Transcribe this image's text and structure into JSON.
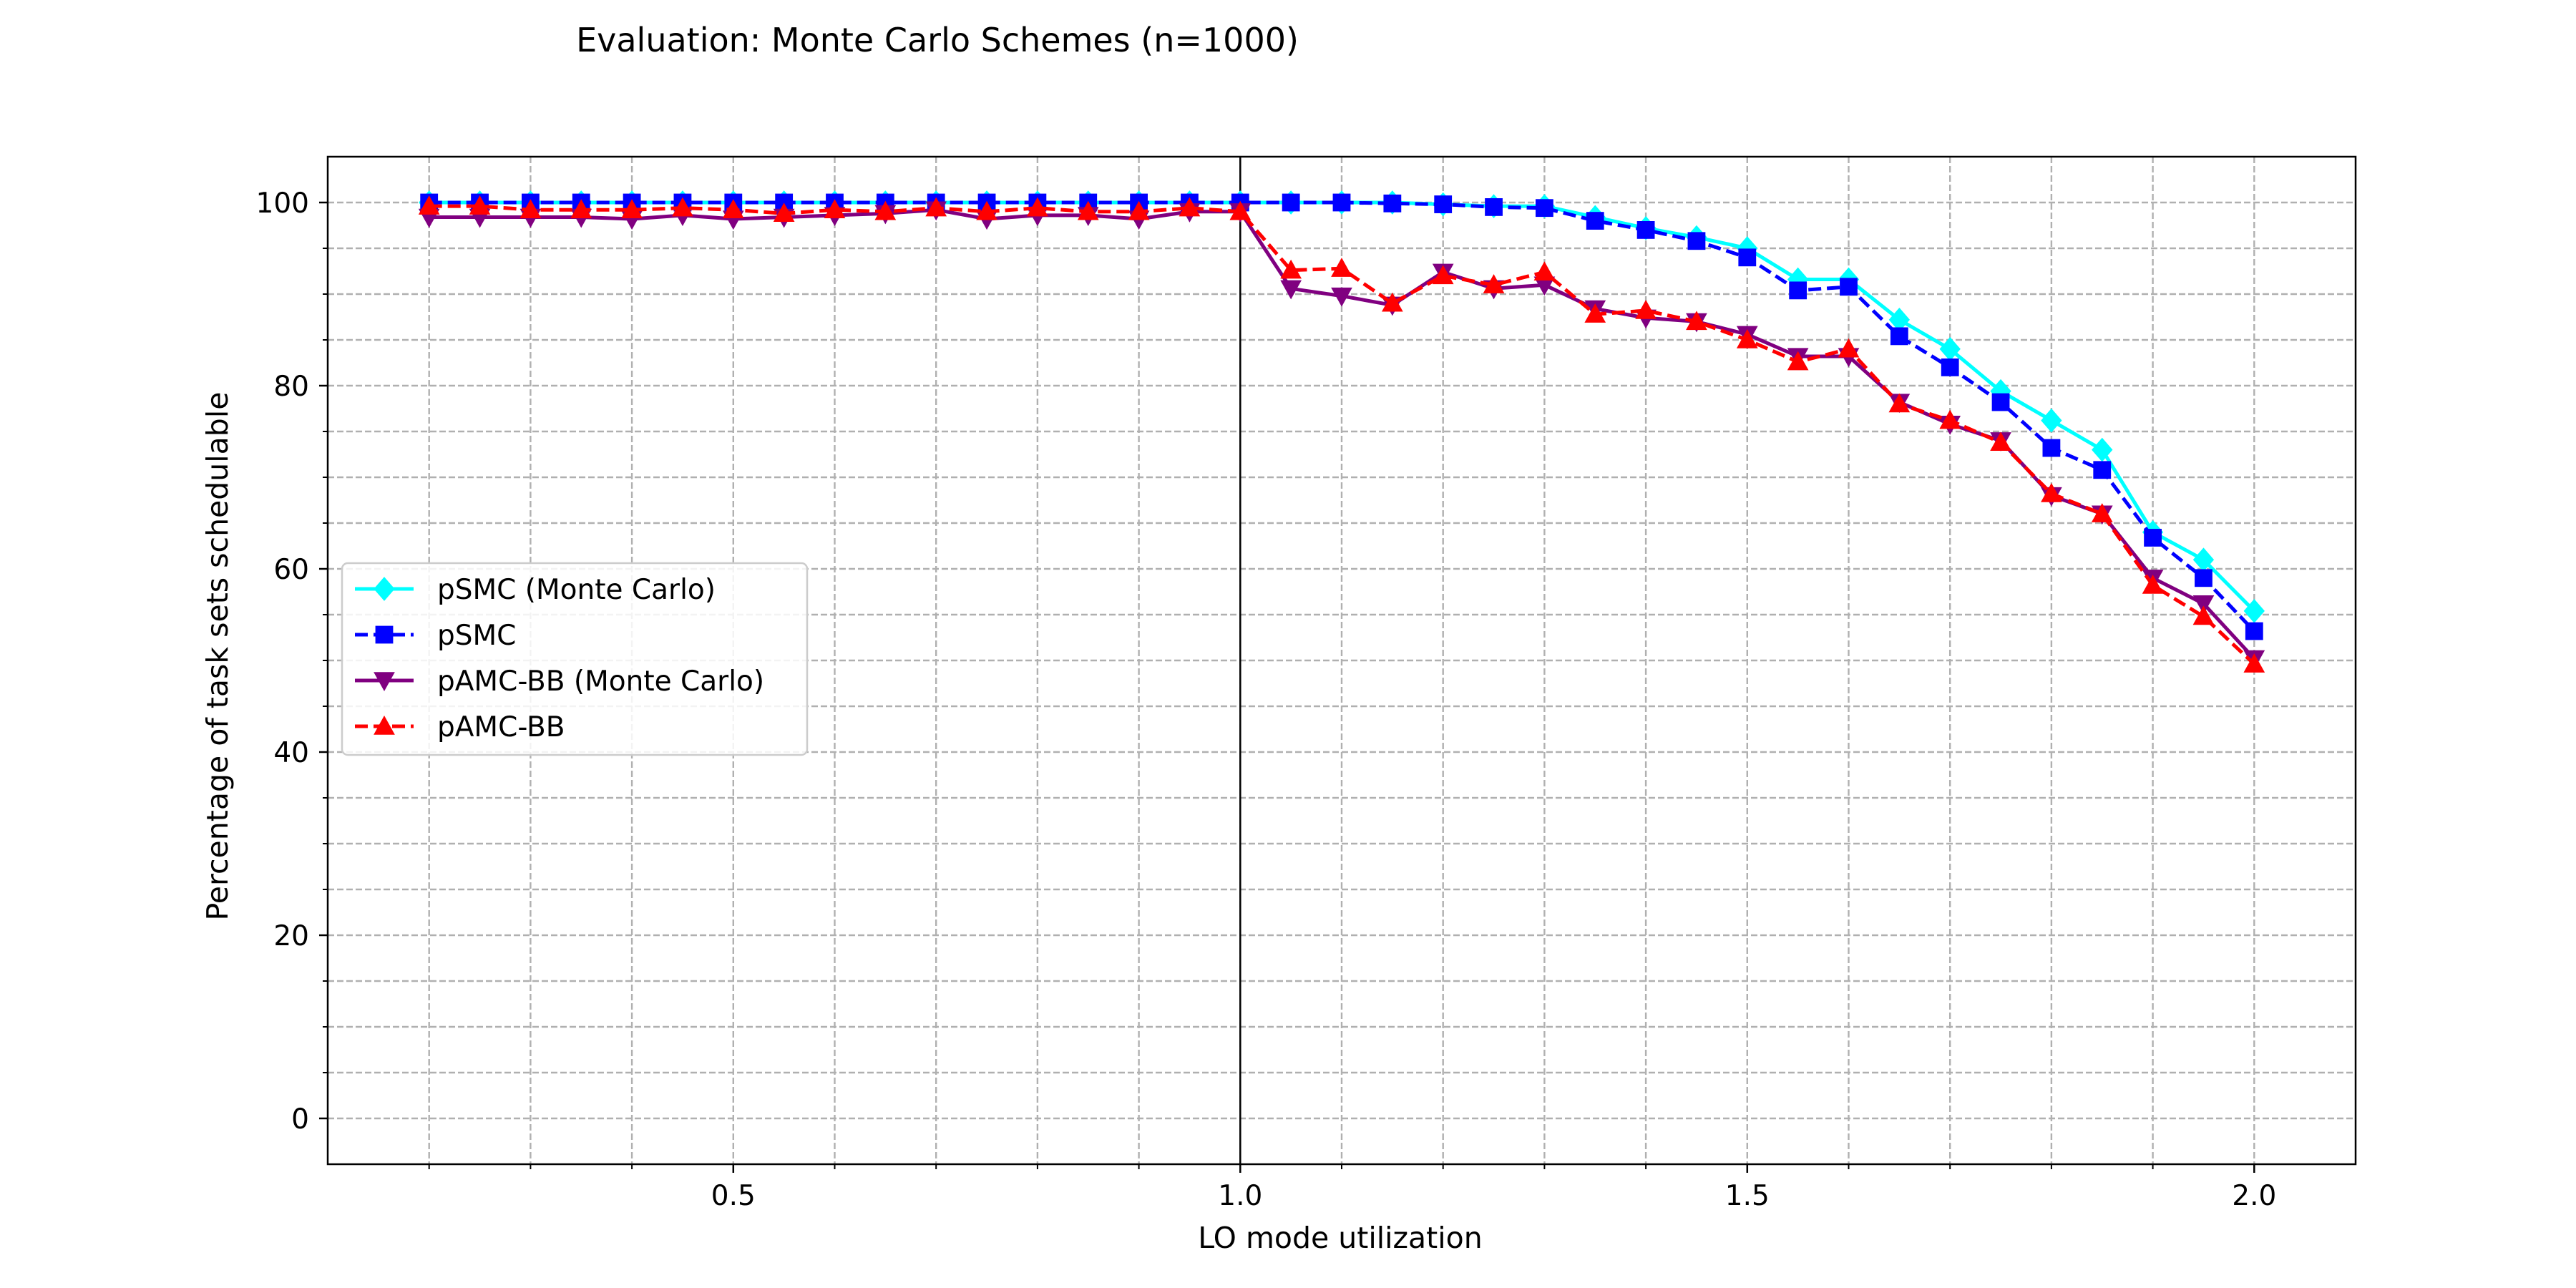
{
  "chart_data": {
    "type": "line",
    "title": "Evaluation: Monte Carlo Schemes (n=1000)",
    "xlabel": "LO mode utilization",
    "ylabel": "Percentage of task sets schedulable",
    "xlim": [
      0.1,
      2.1
    ],
    "ylim": [
      -5,
      105
    ],
    "xticks": [
      0.5,
      1.0,
      1.5,
      2.0
    ],
    "xtick_labels": [
      "0.5",
      "1.0",
      "1.5",
      "2.0"
    ],
    "xminor_ticks": [
      0.2,
      0.3,
      0.4,
      0.6,
      0.7,
      0.8,
      0.9,
      1.1,
      1.2,
      1.3,
      1.4,
      1.6,
      1.7,
      1.8,
      1.9
    ],
    "yticks": [
      0,
      20,
      40,
      60,
      80,
      100
    ],
    "ytick_labels": [
      "0",
      "20",
      "40",
      "60",
      "80",
      "100"
    ],
    "yminor_ticks": [
      5,
      10,
      15,
      25,
      30,
      35,
      45,
      50,
      55,
      65,
      70,
      75,
      85,
      90,
      95
    ],
    "grid": true,
    "vertical_line_x": 1.0,
    "legend_position": "center-left",
    "x": [
      0.2,
      0.25,
      0.3,
      0.35,
      0.4,
      0.45,
      0.5,
      0.55,
      0.6,
      0.65,
      0.7,
      0.75,
      0.8,
      0.85,
      0.9,
      0.95,
      1.0,
      1.05,
      1.1,
      1.15,
      1.2,
      1.25,
      1.3,
      1.35,
      1.4,
      1.45,
      1.5,
      1.55,
      1.6,
      1.65,
      1.7,
      1.75,
      1.8,
      1.85,
      1.9,
      1.95,
      2.0
    ],
    "series": [
      {
        "name": "pSMC (Monte Carlo)",
        "color": "#00ffff",
        "line_style": "solid",
        "marker": "diamond",
        "values": [
          100,
          100,
          100,
          100,
          100,
          100,
          100,
          100,
          100,
          100,
          100,
          100,
          100,
          100,
          100,
          100,
          100,
          100,
          100,
          100,
          99.8,
          99.6,
          99.6,
          98.4,
          97.2,
          96.2,
          95.0,
          91.6,
          91.6,
          87.2,
          84.0,
          79.4,
          76.2,
          73.0,
          64.0,
          61.0,
          55.4
        ]
      },
      {
        "name": "pSMC",
        "color": "#0000ff",
        "line_style": "dashed",
        "marker": "square",
        "values": [
          100,
          100,
          100,
          100,
          100,
          100,
          100,
          100,
          100,
          100,
          100,
          100,
          100,
          100,
          100,
          100,
          100,
          100,
          100,
          99.9,
          99.8,
          99.5,
          99.4,
          98.0,
          97.0,
          95.8,
          94.0,
          90.4,
          90.8,
          85.4,
          82.0,
          78.2,
          73.2,
          70.8,
          63.4,
          59.0,
          53.2
        ]
      },
      {
        "name": "pAMC-BB (Monte Carlo)",
        "color": "#800080",
        "line_style": "solid",
        "marker": "triangle-down",
        "values": [
          98.4,
          98.4,
          98.4,
          98.4,
          98.2,
          98.6,
          98.2,
          98.4,
          98.6,
          98.8,
          99.2,
          98.2,
          98.6,
          98.6,
          98.2,
          99.0,
          99.0,
          90.6,
          89.8,
          88.8,
          92.4,
          90.6,
          91.0,
          88.4,
          87.4,
          87.0,
          85.6,
          83.2,
          83.2,
          78.2,
          75.8,
          74.0,
          68.0,
          66.0,
          59.0,
          56.2,
          50.2
        ]
      },
      {
        "name": "pAMC-BB",
        "color": "#ff0000",
        "line_style": "dashed",
        "marker": "triangle-up",
        "values": [
          99.6,
          99.6,
          99.2,
          99.2,
          99.2,
          99.4,
          99.2,
          98.8,
          99.2,
          99.0,
          99.4,
          99.0,
          99.4,
          99.0,
          99.0,
          99.4,
          99.0,
          92.6,
          92.8,
          89.0,
          92.0,
          91.0,
          92.4,
          87.8,
          88.2,
          87.0,
          85.0,
          82.6,
          84.0,
          78.0,
          76.2,
          73.8,
          68.2,
          66.0,
          58.2,
          54.8,
          49.6
        ]
      }
    ]
  }
}
